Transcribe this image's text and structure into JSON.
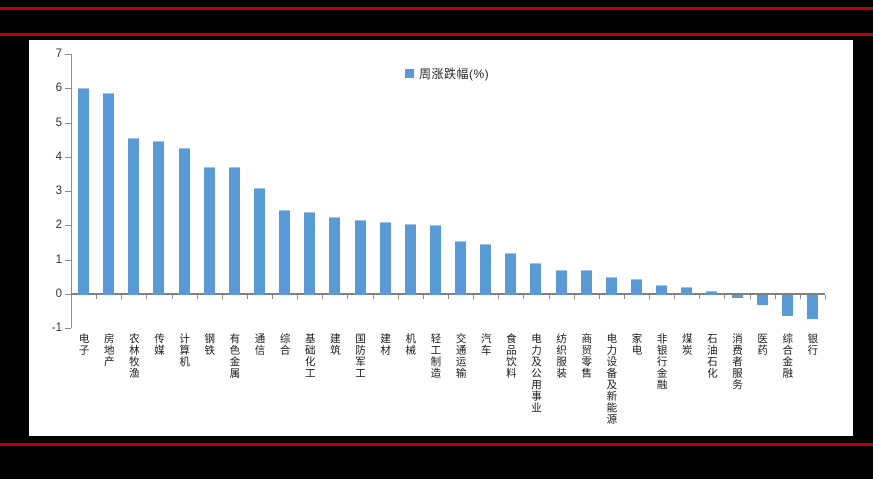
{
  "frame": {
    "band_color": "#000000",
    "accent_color": "#c00000"
  },
  "chart_data": {
    "type": "bar",
    "title": "",
    "legend": "周涨跌幅(%)",
    "legend_position": "top-center",
    "grid": false,
    "bar_color": "#5b9bd5",
    "ylim": [
      -1,
      7
    ],
    "ytick_step": 1,
    "yticks": [
      7,
      6,
      5,
      4,
      3,
      2,
      1,
      0,
      -1
    ],
    "categories": [
      "电子",
      "房地产",
      "农林牧渔",
      "传媒",
      "计算机",
      "钢铁",
      "有色金属",
      "通信",
      "综合",
      "基础化工",
      "建筑",
      "国防军工",
      "建材",
      "机械",
      "轻工制造",
      "交通运输",
      "汽车",
      "食品饮料",
      "电力及公用事业",
      "纺织服装",
      "商贸零售",
      "电力设备及新能源",
      "家电",
      "非银行金融",
      "煤炭",
      "石油石化",
      "消费者服务",
      "医药",
      "综合金融",
      "银行"
    ],
    "values": [
      6.0,
      5.85,
      4.55,
      4.45,
      4.25,
      3.7,
      3.7,
      3.1,
      2.45,
      2.4,
      2.25,
      2.15,
      2.1,
      2.05,
      2.0,
      1.55,
      1.45,
      1.2,
      0.9,
      0.7,
      0.7,
      0.5,
      0.45,
      0.25,
      0.2,
      0.1,
      -0.1,
      -0.3,
      -0.6,
      -0.7
    ]
  }
}
